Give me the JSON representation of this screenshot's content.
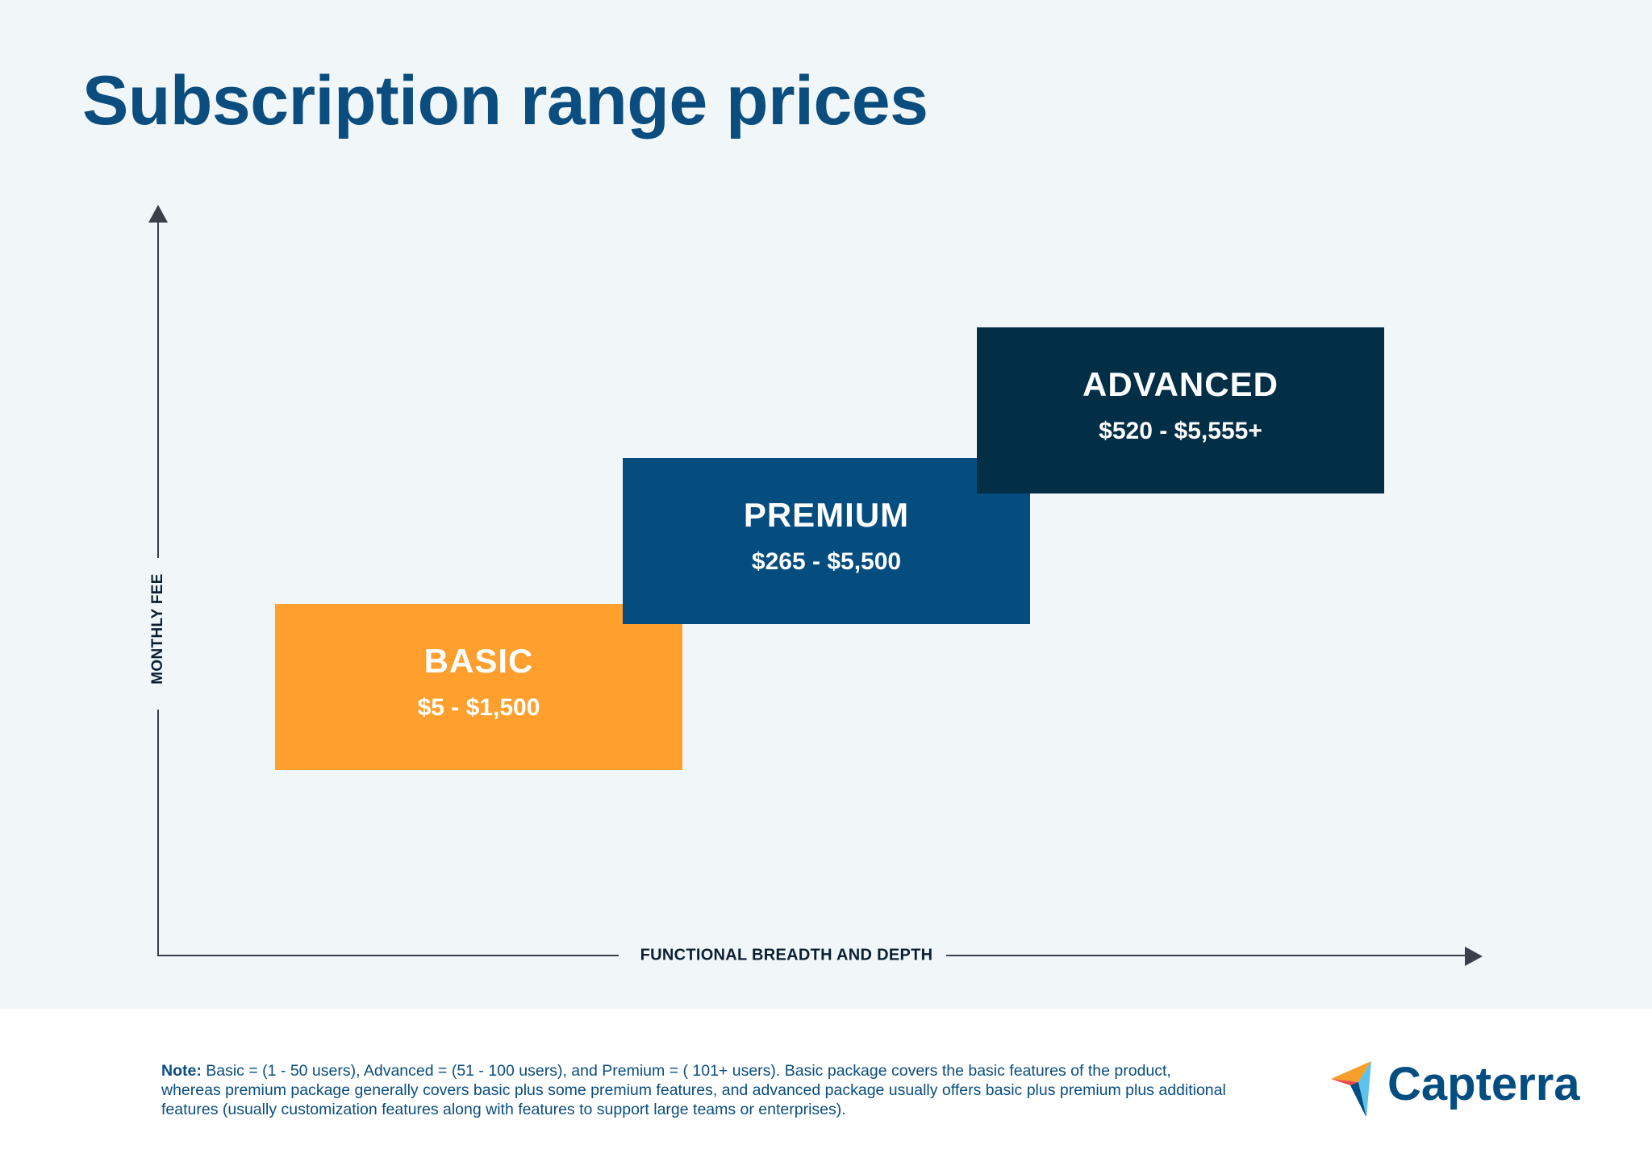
{
  "header": {
    "title": "Subscription range prices"
  },
  "axes": {
    "y_label": "MONTHLY FEE",
    "x_label": "FUNCTIONAL BREADTH AND DEPTH"
  },
  "tiers": [
    {
      "name": "BASIC",
      "price": "$5 - $1,500",
      "color": "#fe9f2e"
    },
    {
      "name": "PREMIUM",
      "price": "$265 - $5,500",
      "color": "#054d7e"
    },
    {
      "name": "ADVANCED",
      "price": "$520 - $5,555+",
      "color": "#022e46"
    }
  ],
  "footer": {
    "note_label": "Note:",
    "note_text": " Basic = (1 - 50 users), Advanced = (51 - 100 users), and Premium = ( 101+ users). Basic package covers the basic features of the product, whereas premium package generally covers basic plus some premium features, and advanced package usually offers basic plus premium plus additional features (usually customization features along with features to support large teams or enterprises).",
    "logo_text": "Capterra"
  },
  "colors": {
    "title": "#0a4d7e",
    "background_top": "#f1f7f8",
    "axis": "#3a3f4a",
    "logo_orange": "#f4a02b",
    "logo_red": "#ee4a4c",
    "logo_blue": "#5bc3ee",
    "logo_navy": "#044d80"
  }
}
